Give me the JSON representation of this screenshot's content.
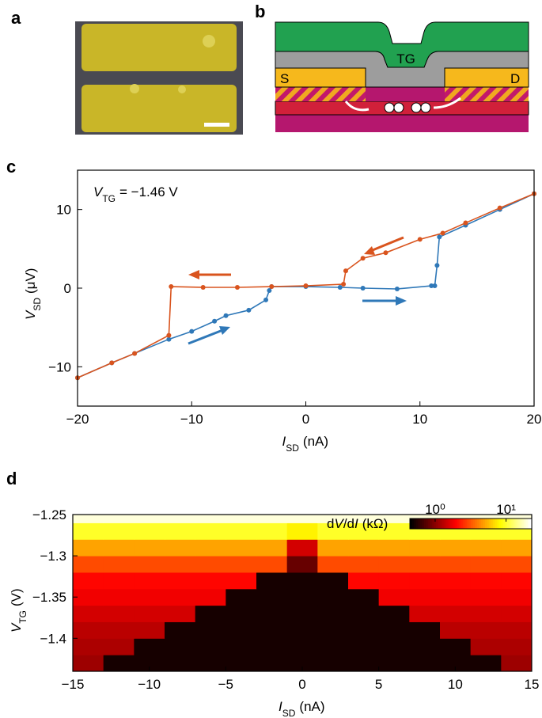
{
  "panel_labels": [
    "a",
    "b",
    "c",
    "d"
  ],
  "diagram": {
    "gate_label": "TG",
    "source_label": "S",
    "drain_label": "D"
  },
  "chart_data": [
    {
      "type": "line",
      "annotation": [
        "V",
        "TG",
        "= −1.46 V"
      ],
      "xlabel": [
        "I",
        "SD",
        "(nA)"
      ],
      "ylabel": [
        "V",
        "SD",
        "(μV)"
      ],
      "xlim": [
        -20,
        20
      ],
      "ylim": [
        -15,
        15
      ],
      "xticks": [
        {
          "value": -20,
          "label": "−20"
        },
        {
          "value": -10,
          "label": "−10"
        },
        0,
        10,
        20
      ],
      "yticks": [
        {
          "value": -10,
          "label": "−10"
        },
        0,
        10
      ],
      "series": [
        {
          "color": "#2f78b8",
          "x": [
            -20,
            -17,
            -15,
            -12,
            -10,
            -8,
            -7,
            -5,
            -3.5,
            -3.2,
            -3,
            0,
            3,
            5,
            8,
            11,
            11.3,
            11.5,
            11.7,
            14,
            17,
            20
          ],
          "values": [
            -11.4,
            -9.5,
            -8.3,
            -6.5,
            -5.5,
            -4.2,
            -3.5,
            -2.8,
            -1.5,
            -0.3,
            0.2,
            0.2,
            0.1,
            0,
            -0.1,
            0.3,
            0.3,
            2.9,
            6.5,
            8,
            10,
            12
          ]
        },
        {
          "color": "#d9541e",
          "x": [
            20,
            17,
            14,
            12,
            10,
            7,
            5,
            3.5,
            3.3,
            0,
            -3,
            -6,
            -9,
            -11.8,
            -12,
            -15,
            -17,
            -20
          ],
          "values": [
            12,
            10.2,
            8.3,
            7,
            6.2,
            4.5,
            3.8,
            2.2,
            0.5,
            0.3,
            0.2,
            0.1,
            0.1,
            0.2,
            -6,
            -8.3,
            -9.5,
            -11.4
          ]
        }
      ]
    },
    {
      "type": "heatmap",
      "xlabel": [
        "I",
        "SD",
        "(nA)"
      ],
      "ylabel": [
        "V",
        "TG",
        "(V)"
      ],
      "colorbar_label": [
        "d",
        "V",
        "/d",
        "I",
        "(kΩ)"
      ],
      "xlim": [
        -15,
        15
      ],
      "ylim": [
        -1.44,
        -1.25
      ],
      "xticks": [
        {
          "value": -15,
          "label": "−15"
        },
        {
          "value": -10,
          "label": "−10"
        },
        {
          "value": -5,
          "label": "−5"
        },
        0,
        5,
        10,
        15
      ],
      "yticks": [
        {
          "value": -1.25,
          "label": "−1.25"
        },
        {
          "value": -1.3,
          "label": "−1.3"
        },
        {
          "value": -1.35,
          "label": "−1.35"
        },
        {
          "value": -1.4,
          "label": "−1.4"
        }
      ],
      "clim": [
        0.44,
        23
      ],
      "log_scale": true,
      "colormap": "hot",
      "cticks": [
        {
          "value": 1,
          "label": "10⁰"
        },
        {
          "value": 10,
          "label": "10¹"
        }
      ],
      "x_edges": [
        -15,
        -13,
        -11,
        -9,
        -7,
        -5,
        -3,
        -1,
        1,
        3,
        5,
        7,
        9,
        11,
        13,
        15
      ],
      "y_edges": [
        -1.44,
        -1.42,
        -1.4,
        -1.38,
        -1.36,
        -1.34,
        -1.32,
        -1.3,
        -1.28,
        -1.26,
        -1.25
      ],
      "z": [
        [
          1.1,
          0.5,
          0.5,
          0.5,
          0.5,
          0.5,
          0.5,
          0.5,
          0.5,
          0.5,
          0.5,
          0.5,
          0.5,
          0.5,
          1.1
        ],
        [
          1.2,
          1.2,
          0.5,
          0.5,
          0.5,
          0.5,
          0.5,
          0.5,
          0.5,
          0.5,
          0.5,
          0.5,
          0.5,
          1.2,
          1.2
        ],
        [
          1.3,
          1.3,
          1.3,
          0.5,
          0.5,
          0.5,
          0.5,
          0.5,
          0.5,
          0.5,
          0.5,
          0.5,
          1.3,
          1.3,
          1.3
        ],
        [
          1.5,
          1.5,
          1.5,
          1.5,
          0.5,
          0.5,
          0.5,
          0.5,
          0.5,
          0.5,
          0.5,
          1.5,
          1.5,
          1.5,
          1.5
        ],
        [
          1.8,
          1.8,
          1.8,
          1.8,
          1.8,
          0.5,
          0.5,
          0.5,
          0.5,
          0.5,
          1.8,
          1.8,
          1.8,
          1.8,
          1.8
        ],
        [
          2,
          2,
          2,
          2,
          2,
          2,
          0.5,
          0.5,
          0.5,
          2,
          2,
          2,
          2,
          2,
          2
        ],
        [
          3,
          3,
          3,
          3,
          3,
          3,
          3,
          0.8,
          3,
          3,
          3,
          3,
          3,
          3,
          3
        ],
        [
          5,
          5,
          5,
          5,
          5,
          5,
          5,
          1.5,
          5,
          5,
          5,
          5,
          5,
          5,
          5
        ],
        [
          10,
          10,
          10,
          10,
          10,
          10,
          10,
          8,
          10,
          10,
          10,
          10,
          10,
          10,
          10
        ],
        [
          20,
          20,
          20,
          20,
          20,
          20,
          20,
          20,
          20,
          20,
          20,
          20,
          20,
          20,
          20
        ]
      ]
    }
  ]
}
